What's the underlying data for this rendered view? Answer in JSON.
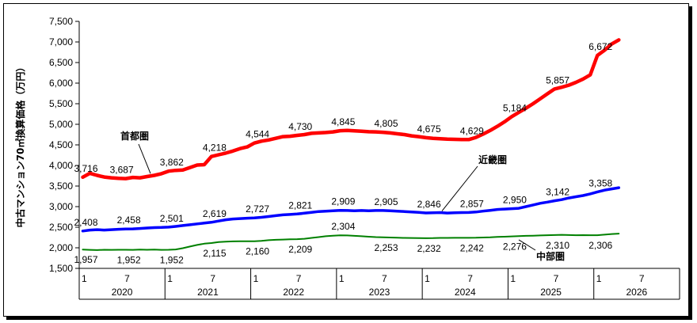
{
  "chart_data": {
    "type": "line",
    "ylabel": "中古マンション70㎡換算価格（万円）",
    "ylim": [
      1500,
      7500
    ],
    "ytick_step": 500,
    "y_ticks": [
      "1,500",
      "2,000",
      "2,500",
      "3,000",
      "3,500",
      "4,000",
      "4,500",
      "5,000",
      "5,500",
      "6,000",
      "6,500",
      "7,000",
      "7,500"
    ],
    "x_month_ticks": [
      "1",
      "7",
      "1",
      "7",
      "1",
      "7",
      "1",
      "7",
      "1",
      "7",
      "1",
      "7",
      "1",
      "7"
    ],
    "x_years": [
      "2020",
      "2021",
      "2022",
      "2023",
      "2024",
      "2025",
      "2026"
    ],
    "x_start": "2020-01",
    "x_end": "2026-12",
    "series": [
      {
        "name": "首都圏",
        "color": "#ff0000",
        "values": [
          3716,
          3810,
          3760,
          3720,
          3700,
          3687,
          3680,
          3710,
          3700,
          3730,
          3760,
          3800,
          3862,
          3880,
          3890,
          3950,
          4010,
          4020,
          4218,
          4260,
          4300,
          4350,
          4410,
          4450,
          4544,
          4590,
          4620,
          4660,
          4700,
          4710,
          4730,
          4750,
          4780,
          4790,
          4800,
          4815,
          4845,
          4850,
          4840,
          4830,
          4820,
          4815,
          4805,
          4790,
          4770,
          4750,
          4720,
          4700,
          4675,
          4660,
          4650,
          4640,
          4635,
          4630,
          4629,
          4680,
          4760,
          4850,
          4950,
          5060,
          5184,
          5290,
          5390,
          5500,
          5620,
          5740,
          5857,
          5900,
          5950,
          6020,
          6100,
          6200,
          6672,
          6800,
          6950,
          7050
        ],
        "labels": [
          {
            "i": 0,
            "text": "3,716",
            "pos": "above"
          },
          {
            "i": 5,
            "text": "3,687",
            "pos": "above"
          },
          {
            "i": 12,
            "text": "3,862",
            "pos": "above"
          },
          {
            "i": 18,
            "text": "4,218",
            "pos": "above"
          },
          {
            "i": 24,
            "text": "4,544",
            "pos": "above"
          },
          {
            "i": 30,
            "text": "4,730",
            "pos": "above"
          },
          {
            "i": 36,
            "text": "4,845",
            "pos": "above"
          },
          {
            "i": 42,
            "text": "4,805",
            "pos": "above"
          },
          {
            "i": 48,
            "text": "4,675",
            "pos": "above"
          },
          {
            "i": 54,
            "text": "4,629",
            "pos": "above"
          },
          {
            "i": 60,
            "text": "5,184",
            "pos": "above"
          },
          {
            "i": 66,
            "text": "5,857",
            "pos": "above"
          },
          {
            "i": 72,
            "text": "6,672",
            "pos": "above"
          }
        ]
      },
      {
        "name": "近畿圏",
        "color": "#0000ff",
        "values": [
          2408,
          2430,
          2440,
          2430,
          2440,
          2450,
          2458,
          2460,
          2470,
          2480,
          2490,
          2495,
          2501,
          2520,
          2540,
          2560,
          2580,
          2600,
          2619,
          2650,
          2680,
          2700,
          2710,
          2720,
          2727,
          2740,
          2760,
          2780,
          2800,
          2810,
          2821,
          2840,
          2860,
          2880,
          2890,
          2900,
          2909,
          2905,
          2900,
          2905,
          2900,
          2905,
          2905,
          2900,
          2890,
          2880,
          2870,
          2860,
          2846,
          2850,
          2855,
          2845,
          2850,
          2855,
          2857,
          2870,
          2890,
          2910,
          2930,
          2940,
          2950,
          2960,
          3000,
          3040,
          3080,
          3110,
          3142,
          3170,
          3210,
          3240,
          3270,
          3310,
          3358,
          3400,
          3430,
          3460
        ],
        "labels": [
          {
            "i": 0,
            "text": "2,408",
            "pos": "above"
          },
          {
            "i": 6,
            "text": "2,458",
            "pos": "above"
          },
          {
            "i": 12,
            "text": "2,501",
            "pos": "above"
          },
          {
            "i": 18,
            "text": "2,619",
            "pos": "above"
          },
          {
            "i": 24,
            "text": "2,727",
            "pos": "above"
          },
          {
            "i": 30,
            "text": "2,821",
            "pos": "above"
          },
          {
            "i": 36,
            "text": "2,909",
            "pos": "above"
          },
          {
            "i": 42,
            "text": "2,905",
            "pos": "above"
          },
          {
            "i": 48,
            "text": "2,846",
            "pos": "above"
          },
          {
            "i": 54,
            "text": "2,857",
            "pos": "above"
          },
          {
            "i": 60,
            "text": "2,950",
            "pos": "above"
          },
          {
            "i": 66,
            "text": "3,142",
            "pos": "above"
          },
          {
            "i": 72,
            "text": "3,358",
            "pos": "above"
          }
        ]
      },
      {
        "name": "中部圏",
        "color": "#008000",
        "values": [
          1957,
          1950,
          1945,
          1952,
          1950,
          1952,
          1952,
          1950,
          1955,
          1952,
          1955,
          1950,
          1952,
          1960,
          1990,
          2030,
          2070,
          2100,
          2115,
          2140,
          2150,
          2155,
          2158,
          2160,
          2160,
          2170,
          2185,
          2195,
          2200,
          2205,
          2209,
          2220,
          2240,
          2260,
          2280,
          2295,
          2304,
          2300,
          2290,
          2280,
          2270,
          2260,
          2253,
          2250,
          2245,
          2240,
          2238,
          2235,
          2232,
          2235,
          2240,
          2240,
          2242,
          2242,
          2242,
          2245,
          2250,
          2255,
          2265,
          2270,
          2276,
          2285,
          2290,
          2295,
          2300,
          2305,
          2310,
          2315,
          2310,
          2305,
          2308,
          2306,
          2306,
          2320,
          2335,
          2345
        ],
        "labels": [
          {
            "i": 0,
            "text": "1,957",
            "pos": "below"
          },
          {
            "i": 6,
            "text": "1,952",
            "pos": "below"
          },
          {
            "i": 12,
            "text": "1,952",
            "pos": "below"
          },
          {
            "i": 18,
            "text": "2,115",
            "pos": "below"
          },
          {
            "i": 24,
            "text": "2,160",
            "pos": "below"
          },
          {
            "i": 30,
            "text": "2,209",
            "pos": "below"
          },
          {
            "i": 36,
            "text": "2,304",
            "pos": "above"
          },
          {
            "i": 42,
            "text": "2,253",
            "pos": "below"
          },
          {
            "i": 48,
            "text": "2,232",
            "pos": "below"
          },
          {
            "i": 54,
            "text": "2,242",
            "pos": "below"
          },
          {
            "i": 60,
            "text": "2,276",
            "pos": "below"
          },
          {
            "i": 66,
            "text": "2,310",
            "pos": "below"
          },
          {
            "i": 72,
            "text": "2,306",
            "pos": "below"
          }
        ]
      }
    ],
    "grid": false,
    "legend": "inline-callouts"
  }
}
